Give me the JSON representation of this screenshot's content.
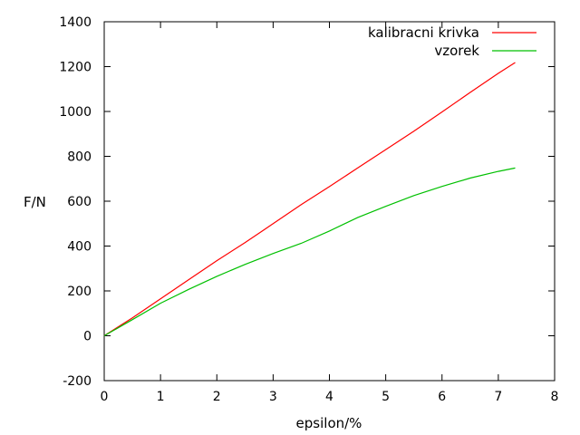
{
  "chart_data": {
    "type": "line",
    "title": "",
    "xlabel": "epsilon/%",
    "ylabel": "F/N",
    "xlim": [
      0,
      8
    ],
    "ylim": [
      -200,
      1400
    ],
    "x_ticks": [
      0,
      1,
      2,
      3,
      4,
      5,
      6,
      7,
      8
    ],
    "y_ticks": [
      -200,
      0,
      200,
      400,
      600,
      800,
      1000,
      1200,
      1400
    ],
    "grid": false,
    "legend_position": "top-right",
    "series": [
      {
        "name": "kalibracni krivka",
        "color": "#ff0000",
        "x": [
          0,
          0.5,
          1,
          1.5,
          2,
          2.5,
          3,
          3.5,
          4,
          4.5,
          5,
          5.5,
          6,
          6.5,
          7,
          7.3
        ],
        "y": [
          0,
          80,
          165,
          250,
          335,
          415,
          500,
          585,
          665,
          748,
          830,
          912,
          998,
          1085,
          1170,
          1218
        ]
      },
      {
        "name": "vzorek",
        "color": "#00c000",
        "x": [
          0,
          0.5,
          1,
          1.5,
          2,
          2.5,
          3,
          3.5,
          4,
          4.5,
          5,
          5.5,
          6,
          6.5,
          7,
          7.3
        ],
        "y": [
          0,
          72,
          145,
          207,
          265,
          318,
          367,
          412,
          467,
          527,
          577,
          625,
          666,
          703,
          733,
          748
        ]
      }
    ]
  }
}
